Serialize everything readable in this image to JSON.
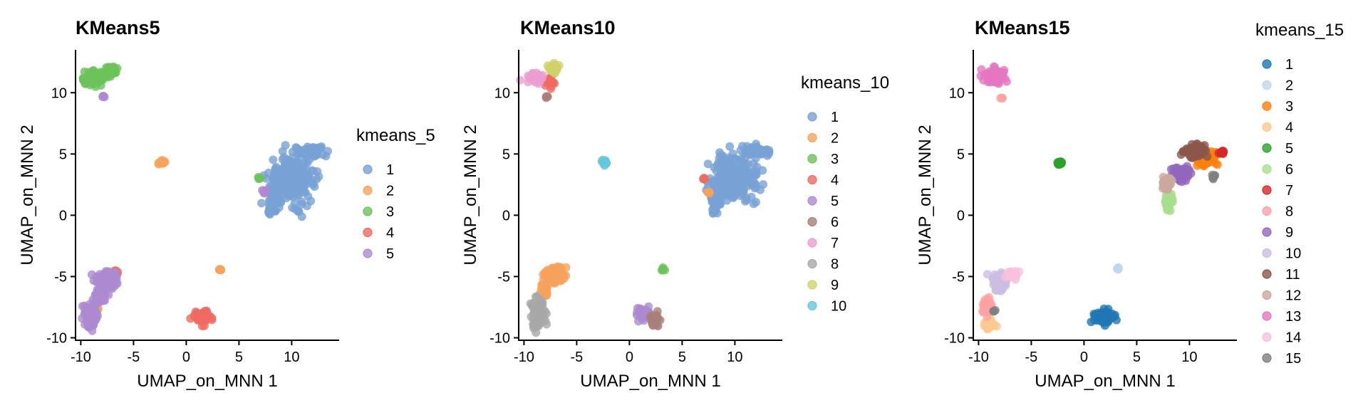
{
  "colors": {
    "kmeans_5": [
      "#78a1d4",
      "#f6a35c",
      "#6cc35a",
      "#ef6b62",
      "#ad8ad0"
    ],
    "kmeans_10": [
      "#78a1d4",
      "#f6a35c",
      "#6cc35a",
      "#ef6b62",
      "#ad8ad0",
      "#a98078",
      "#ec9ecf",
      "#a8a8a8",
      "#d1d16a",
      "#66c6dc"
    ],
    "kmeans_15": [
      "#1f77b4",
      "#c0d6ef",
      "#ff7f0e",
      "#fdc990",
      "#2ca02c",
      "#a8df8e",
      "#d62728",
      "#fca3a3",
      "#9467bd",
      "#cbbde3",
      "#8c564b",
      "#caa79e",
      "#e377c2",
      "#f7c1dc",
      "#7f7f7f"
    ]
  },
  "chart_data": [
    {
      "type": "scatter",
      "title": "KMeans5",
      "xlabel": "UMAP_on_MNN 1",
      "ylabel": "UMAP_on_MNN 2",
      "xlim": [
        -10.5,
        14.5
      ],
      "ylim": [
        -10.2,
        13.5
      ],
      "xticks": [
        -10,
        -5,
        0,
        5,
        10
      ],
      "yticks": [
        -10,
        -5,
        0,
        5,
        10
      ],
      "x_tick_labels": [
        "-10",
        "-5",
        "0",
        "5",
        "10"
      ],
      "y_tick_labels": [
        "-10",
        "-5",
        "0",
        "5",
        "10"
      ],
      "legend_title": "kmeans_5",
      "legend_labels": [
        "1",
        "2",
        "3",
        "4",
        "5"
      ],
      "legend_position": "right",
      "colormap": "kmeans_5",
      "clusters": [
        {
          "label": "1",
          "cx": 10.0,
          "cy": 3.0,
          "sx": 2.0,
          "sy": 1.8,
          "n": 240
        },
        {
          "label": "1",
          "cx": 8.2,
          "cy": 1.2,
          "sx": 0.35,
          "sy": 1.0,
          "n": 60
        },
        {
          "label": "1",
          "cx": 12.0,
          "cy": 5.2,
          "sx": 1.2,
          "sy": 0.35,
          "n": 60
        },
        {
          "label": "1",
          "cx": 11.5,
          "cy": 3.1,
          "sx": 0.3,
          "sy": 0.2,
          "n": 8
        },
        {
          "label": "2",
          "cx": -2.3,
          "cy": 4.3,
          "sx": 0.25,
          "sy": 0.18,
          "n": 18
        },
        {
          "label": "2",
          "cx": 3.2,
          "cy": -4.4,
          "sx": 0.15,
          "sy": 0.12,
          "n": 6
        },
        {
          "label": "2",
          "cx": -8.5,
          "cy": -7.7,
          "sx": 0.2,
          "sy": 0.15,
          "n": 5
        },
        {
          "label": "3",
          "cx": -8.8,
          "cy": 11.2,
          "sx": 0.8,
          "sy": 0.5,
          "n": 90
        },
        {
          "label": "3",
          "cx": -7.2,
          "cy": 11.8,
          "sx": 0.5,
          "sy": 0.4,
          "n": 50
        },
        {
          "label": "3",
          "cx": 6.9,
          "cy": 3.0,
          "sx": 0.12,
          "sy": 0.1,
          "n": 4
        },
        {
          "label": "4",
          "cx": 1.5,
          "cy": -8.3,
          "sx": 0.8,
          "sy": 0.45,
          "n": 70
        },
        {
          "label": "4",
          "cx": -6.6,
          "cy": -4.8,
          "sx": 0.35,
          "sy": 0.25,
          "n": 12
        },
        {
          "label": "5",
          "cx": -7.5,
          "cy": -5.2,
          "sx": 0.9,
          "sy": 0.7,
          "n": 120
        },
        {
          "label": "5",
          "cx": -9.0,
          "cy": -8.2,
          "sx": 0.5,
          "sy": 0.9,
          "n": 90
        },
        {
          "label": "5",
          "cx": -8.2,
          "cy": -6.5,
          "sx": 0.4,
          "sy": 0.6,
          "n": 40
        },
        {
          "label": "5",
          "cx": -7.8,
          "cy": 9.7,
          "sx": 0.12,
          "sy": 0.1,
          "n": 4
        },
        {
          "label": "5",
          "cx": 7.4,
          "cy": 2.0,
          "sx": 0.15,
          "sy": 0.15,
          "n": 5
        }
      ]
    },
    {
      "type": "scatter",
      "title": "KMeans10",
      "xlabel": "UMAP_on_MNN 1",
      "ylabel": "UMAP_on_MNN 2",
      "xlim": [
        -10.5,
        14.5
      ],
      "ylim": [
        -10.2,
        13.5
      ],
      "xticks": [
        -10,
        -5,
        0,
        5,
        10
      ],
      "yticks": [
        -10,
        -5,
        0,
        5,
        10
      ],
      "x_tick_labels": [
        "-10",
        "-5",
        "0",
        "5",
        "10"
      ],
      "y_tick_labels": [
        "-10",
        "-5",
        "0",
        "5",
        "10"
      ],
      "legend_title": "kmeans_10",
      "legend_labels": [
        "1",
        "2",
        "3",
        "4",
        "5",
        "6",
        "7",
        "8",
        "9",
        "10"
      ],
      "legend_position": "right",
      "colormap": "kmeans_10",
      "clusters": [
        {
          "label": "1",
          "cx": 10.0,
          "cy": 3.0,
          "sx": 2.0,
          "sy": 1.8,
          "n": 240
        },
        {
          "label": "1",
          "cx": 8.2,
          "cy": 1.2,
          "sx": 0.35,
          "sy": 1.0,
          "n": 60
        },
        {
          "label": "1",
          "cx": 12.0,
          "cy": 5.2,
          "sx": 1.2,
          "sy": 0.35,
          "n": 60
        },
        {
          "label": "1",
          "cx": 11.5,
          "cy": 3.1,
          "sx": 0.3,
          "sy": 0.2,
          "n": 8
        },
        {
          "label": "2",
          "cx": -7.2,
          "cy": -4.9,
          "sx": 0.9,
          "sy": 0.6,
          "n": 130
        },
        {
          "label": "2",
          "cx": -8.0,
          "cy": -6.0,
          "sx": 0.4,
          "sy": 0.5,
          "n": 30
        },
        {
          "label": "2",
          "cx": 7.5,
          "cy": 1.9,
          "sx": 0.12,
          "sy": 0.12,
          "n": 4
        },
        {
          "label": "3",
          "cx": 3.2,
          "cy": -4.4,
          "sx": 0.15,
          "sy": 0.12,
          "n": 6
        },
        {
          "label": "3",
          "cx": -8.5,
          "cy": -7.6,
          "sx": 0.15,
          "sy": 0.12,
          "n": 3
        },
        {
          "label": "4",
          "cx": -7.6,
          "cy": 10.8,
          "sx": 0.35,
          "sy": 0.35,
          "n": 20
        },
        {
          "label": "4",
          "cx": 7.1,
          "cy": 3.0,
          "sx": 0.12,
          "sy": 0.1,
          "n": 4
        },
        {
          "label": "5",
          "cx": 1.3,
          "cy": -8.0,
          "sx": 0.5,
          "sy": 0.4,
          "n": 40
        },
        {
          "label": "6",
          "cx": 2.4,
          "cy": -8.5,
          "sx": 0.4,
          "sy": 0.4,
          "n": 35
        },
        {
          "label": "6",
          "cx": -7.8,
          "cy": 9.7,
          "sx": 0.12,
          "sy": 0.1,
          "n": 4
        },
        {
          "label": "7",
          "cx": -8.9,
          "cy": 11.2,
          "sx": 0.6,
          "sy": 0.35,
          "n": 60
        },
        {
          "label": "8",
          "cx": -8.7,
          "cy": -8.0,
          "sx": 0.6,
          "sy": 1.0,
          "n": 110
        },
        {
          "label": "9",
          "cx": -7.2,
          "cy": 12.0,
          "sx": 0.4,
          "sy": 0.35,
          "n": 30
        },
        {
          "label": "10",
          "cx": -2.3,
          "cy": 4.3,
          "sx": 0.25,
          "sy": 0.18,
          "n": 18
        }
      ]
    },
    {
      "type": "scatter",
      "title": "KMeans15",
      "xlabel": "UMAP_on_MNN 1",
      "ylabel": "UMAP_on_MNN 2",
      "xlim": [
        -10.5,
        14.5
      ],
      "ylim": [
        -10.2,
        13.5
      ],
      "xticks": [
        -10,
        -5,
        0,
        5,
        10
      ],
      "yticks": [
        -10,
        -5,
        0,
        5,
        10
      ],
      "x_tick_labels": [
        "-10",
        "-5",
        "0",
        "5",
        "10"
      ],
      "y_tick_labels": [
        "-10",
        "-5",
        "0",
        "5",
        "10"
      ],
      "legend_title": "kmeans_15",
      "legend_labels": [
        "1",
        "2",
        "3",
        "4",
        "5",
        "6",
        "7",
        "8",
        "9",
        "10",
        "11",
        "12",
        "13",
        "14",
        "15"
      ],
      "legend_position": "right",
      "colormap": "kmeans_15",
      "clusters": [
        {
          "label": "1",
          "cx": 1.8,
          "cy": -8.3,
          "sx": 0.8,
          "sy": 0.45,
          "n": 70
        },
        {
          "label": "2",
          "cx": 3.2,
          "cy": -4.4,
          "sx": 0.15,
          "sy": 0.12,
          "n": 6
        },
        {
          "label": "3",
          "cx": 11.5,
          "cy": 4.6,
          "sx": 0.8,
          "sy": 0.6,
          "n": 70
        },
        {
          "label": "4",
          "cx": -9.0,
          "cy": -9.0,
          "sx": 0.45,
          "sy": 0.4,
          "n": 35
        },
        {
          "label": "5",
          "cx": -2.3,
          "cy": 4.3,
          "sx": 0.25,
          "sy": 0.18,
          "n": 18
        },
        {
          "label": "6",
          "cx": 8.0,
          "cy": 1.2,
          "sx": 0.35,
          "sy": 0.7,
          "n": 45
        },
        {
          "label": "7",
          "cx": 13.1,
          "cy": 5.1,
          "sx": 0.25,
          "sy": 0.2,
          "n": 8
        },
        {
          "label": "8",
          "cx": -9.2,
          "cy": -7.5,
          "sx": 0.45,
          "sy": 0.6,
          "n": 50
        },
        {
          "label": "8",
          "cx": -7.8,
          "cy": 9.6,
          "sx": 0.12,
          "sy": 0.1,
          "n": 4
        },
        {
          "label": "9",
          "cx": 9.2,
          "cy": 3.4,
          "sx": 0.8,
          "sy": 0.55,
          "n": 90
        },
        {
          "label": "10",
          "cx": -8.0,
          "cy": -5.4,
          "sx": 0.65,
          "sy": 0.6,
          "n": 80
        },
        {
          "label": "11",
          "cx": 10.6,
          "cy": 5.3,
          "sx": 1.0,
          "sy": 0.45,
          "n": 90
        },
        {
          "label": "12",
          "cx": 7.8,
          "cy": 2.6,
          "sx": 0.5,
          "sy": 0.45,
          "n": 40
        },
        {
          "label": "13",
          "cx": -8.5,
          "cy": 11.3,
          "sx": 0.9,
          "sy": 0.55,
          "n": 110
        },
        {
          "label": "14",
          "cx": -6.8,
          "cy": -4.8,
          "sx": 0.5,
          "sy": 0.35,
          "n": 45
        },
        {
          "label": "15",
          "cx": 12.3,
          "cy": 3.2,
          "sx": 0.2,
          "sy": 0.15,
          "n": 6
        },
        {
          "label": "15",
          "cx": -8.5,
          "cy": -7.8,
          "sx": 0.12,
          "sy": 0.1,
          "n": 3
        }
      ]
    }
  ]
}
